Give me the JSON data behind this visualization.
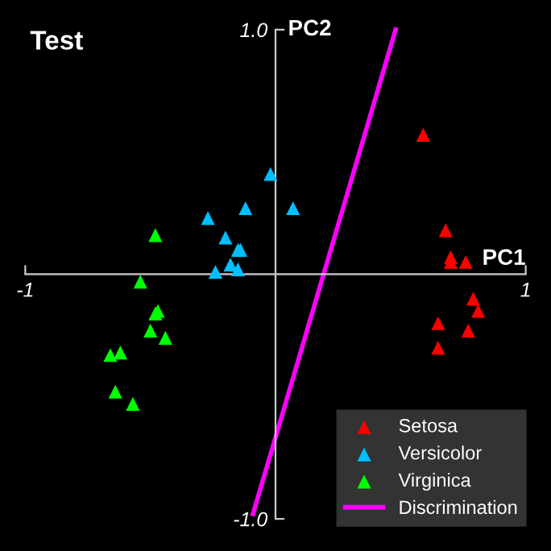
{
  "chart_data": {
    "type": "scatter",
    "title": "Test",
    "xlabel": "PC1",
    "ylabel": "PC2",
    "xlim": [
      -1.09,
      1.09
    ],
    "ylim": [
      -1.12,
      1.11
    ],
    "xticks": [
      {
        "value": -1,
        "label": "-1"
      },
      {
        "value": 1,
        "label": "1"
      }
    ],
    "yticks": [
      {
        "value": 1,
        "label": "1.0"
      },
      {
        "value": -1,
        "label": "-1.0"
      }
    ],
    "grid": false,
    "legend": "bottom right",
    "series": [
      {
        "name": "Setosa",
        "marker": "triangle",
        "color": "#ff0000",
        "x": [
          0.59,
          0.68,
          0.7,
          0.76,
          0.7,
          0.79,
          0.81,
          0.65,
          0.77,
          0.65
        ],
        "values": [
          0.57,
          0.18,
          0.07,
          0.05,
          0.05,
          -0.1,
          -0.15,
          -0.2,
          -0.23,
          -0.3
        ]
      },
      {
        "name": "Versicolor",
        "marker": "triangle",
        "color": "#00bfff",
        "x": [
          -0.02,
          0.07,
          -0.12,
          -0.27,
          -0.2,
          -0.15,
          -0.14,
          -0.18,
          -0.24,
          -0.15
        ],
        "values": [
          0.41,
          0.27,
          0.27,
          0.23,
          0.15,
          0.1,
          0.1,
          0.04,
          0.01,
          0.02
        ]
      },
      {
        "name": "Virginica",
        "marker": "triangle",
        "color": "#00ff00",
        "x": [
          -0.48,
          -0.54,
          -0.47,
          -0.48,
          -0.5,
          -0.44,
          -0.66,
          -0.62,
          -0.64,
          -0.57
        ],
        "values": [
          0.16,
          -0.03,
          -0.15,
          -0.16,
          -0.23,
          -0.26,
          -0.33,
          -0.32,
          -0.48,
          -0.53
        ]
      },
      {
        "name": "Discrimination",
        "type": "line",
        "marker": "none",
        "color": "#ff00ff",
        "x": [
          -0.09,
          0.48
        ],
        "values": [
          -0.98,
          1.0
        ]
      }
    ]
  }
}
